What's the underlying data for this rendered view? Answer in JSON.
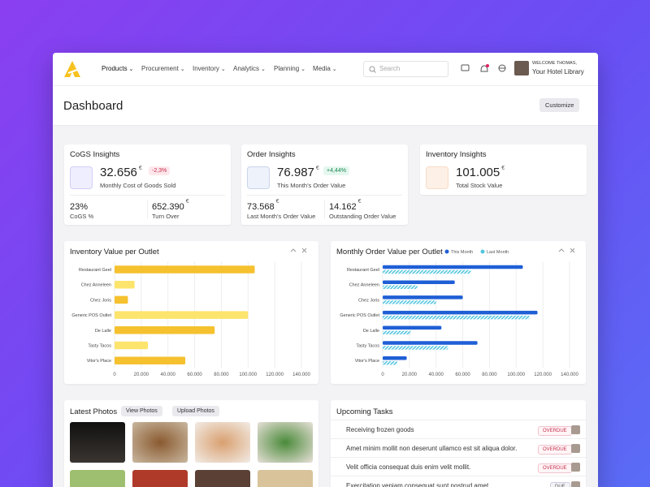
{
  "nav": {
    "items": [
      "Products",
      "Procurement",
      "Inventory",
      "Analytics",
      "Planning",
      "Media"
    ],
    "search": "Search",
    "welcome": "WELCOME THOMAS,",
    "library": "Your Hotel Library"
  },
  "header": {
    "title": "Dashboard",
    "customize": "Customize"
  },
  "cards": [
    {
      "title": "CoGS Insights",
      "value": "32.656",
      "unit": "€",
      "change": "-2,3%",
      "caption": "Monthly Cost of Goods Sold",
      "stats": [
        {
          "value": "23%",
          "label": "CoGS %"
        },
        {
          "value": "652.390",
          "unit": "€",
          "label": "Turn Over"
        }
      ]
    },
    {
      "title": "Order Insights",
      "value": "76.987",
      "unit": "€",
      "change": "+4,44%",
      "caption": "This Month's Order Value",
      "stats": [
        {
          "value": "73.568",
          "unit": "€",
          "label": "Last Month's Order Value"
        },
        {
          "value": "14.162",
          "unit": "€",
          "label": "Outstanding Order Value"
        }
      ]
    },
    {
      "title": "Inventory Insights",
      "value": "101.005",
      "unit": "€",
      "caption": "Total Stock Value"
    }
  ],
  "chart_data": [
    {
      "type": "bar",
      "orientation": "horizontal",
      "title": "Inventory Value per Outlet",
      "categories": [
        "Restaurant Geel",
        "Chez Anneleen",
        "Chez Joris",
        "Generic POS Outlet",
        "De Lalle",
        "Tasty Tacos",
        "Vitor's Place"
      ],
      "series": [
        {
          "values": [
            105000,
            15000,
            10000,
            100000,
            75000,
            25000,
            53000
          ],
          "colors": [
            "#f5c12e",
            "#fde46c",
            "#f5c12e",
            "#fde46c",
            "#f5c12e",
            "#fde46c",
            "#f5c12e"
          ]
        }
      ],
      "xlim": [
        0,
        140000
      ],
      "xticks": [
        0,
        {
          "value": 20000,
          "label": "20.000"
        },
        {
          "value": 40000,
          "label": "40.000"
        },
        {
          "value": 60000,
          "label": "60.000"
        },
        {
          "value": 80000,
          "label": "80.000"
        },
        {
          "value": 100000,
          "label": "100.000"
        },
        {
          "value": 120000,
          "label": "120.000"
        },
        {
          "value": 140000,
          "label": "140.000"
        }
      ],
      "grid": true
    },
    {
      "type": "bar",
      "orientation": "horizontal",
      "title": "Monthly Order Value per Outlet",
      "categories": [
        "Restaurant Geel",
        "Chez Anneleen",
        "Chez Joris",
        "Generic POS Outlet",
        "De Lalle",
        "Tasty Tacos",
        "Vitor's Place"
      ],
      "series": [
        {
          "name": "This Month",
          "color": "#1f5fd6",
          "values": [
            105000,
            54000,
            60000,
            116000,
            44000,
            71000,
            18000
          ]
        },
        {
          "name": "Last Month",
          "color": "#55c6e0",
          "hatched": true,
          "values": [
            66000,
            26000,
            40000,
            110000,
            21000,
            49000,
            11000
          ]
        }
      ],
      "xlim": [
        0,
        140000
      ],
      "xticks": [
        0,
        {
          "value": 20000,
          "label": "20.000"
        },
        {
          "value": 40000,
          "label": "40.000"
        },
        {
          "value": 60000,
          "label": "60.000"
        },
        {
          "value": 80000,
          "label": "80.000"
        },
        {
          "value": 100000,
          "label": "100.000"
        },
        {
          "value": 120000,
          "label": "120.000"
        },
        {
          "value": 140000,
          "label": "140.000"
        }
      ],
      "grid": true
    }
  ],
  "photos": {
    "title": "Latest Photos",
    "buttons": [
      "View Photos",
      "Upload Photos"
    ]
  },
  "tasks": {
    "title": "Upcoming Tasks",
    "items": [
      {
        "text": "Receiving frozen goods",
        "status": "OVERDUE"
      },
      {
        "text": "Amet minim mollit non deserunt ullamco est sit aliqua dolor.",
        "status": "OVERDUE"
      },
      {
        "text": "Velit officia consequat duis enim velit mollit.",
        "status": "OVERDUE"
      },
      {
        "text": "Exercitation veniam consequat sunt nostrud amet.",
        "status": "DUE"
      }
    ]
  }
}
